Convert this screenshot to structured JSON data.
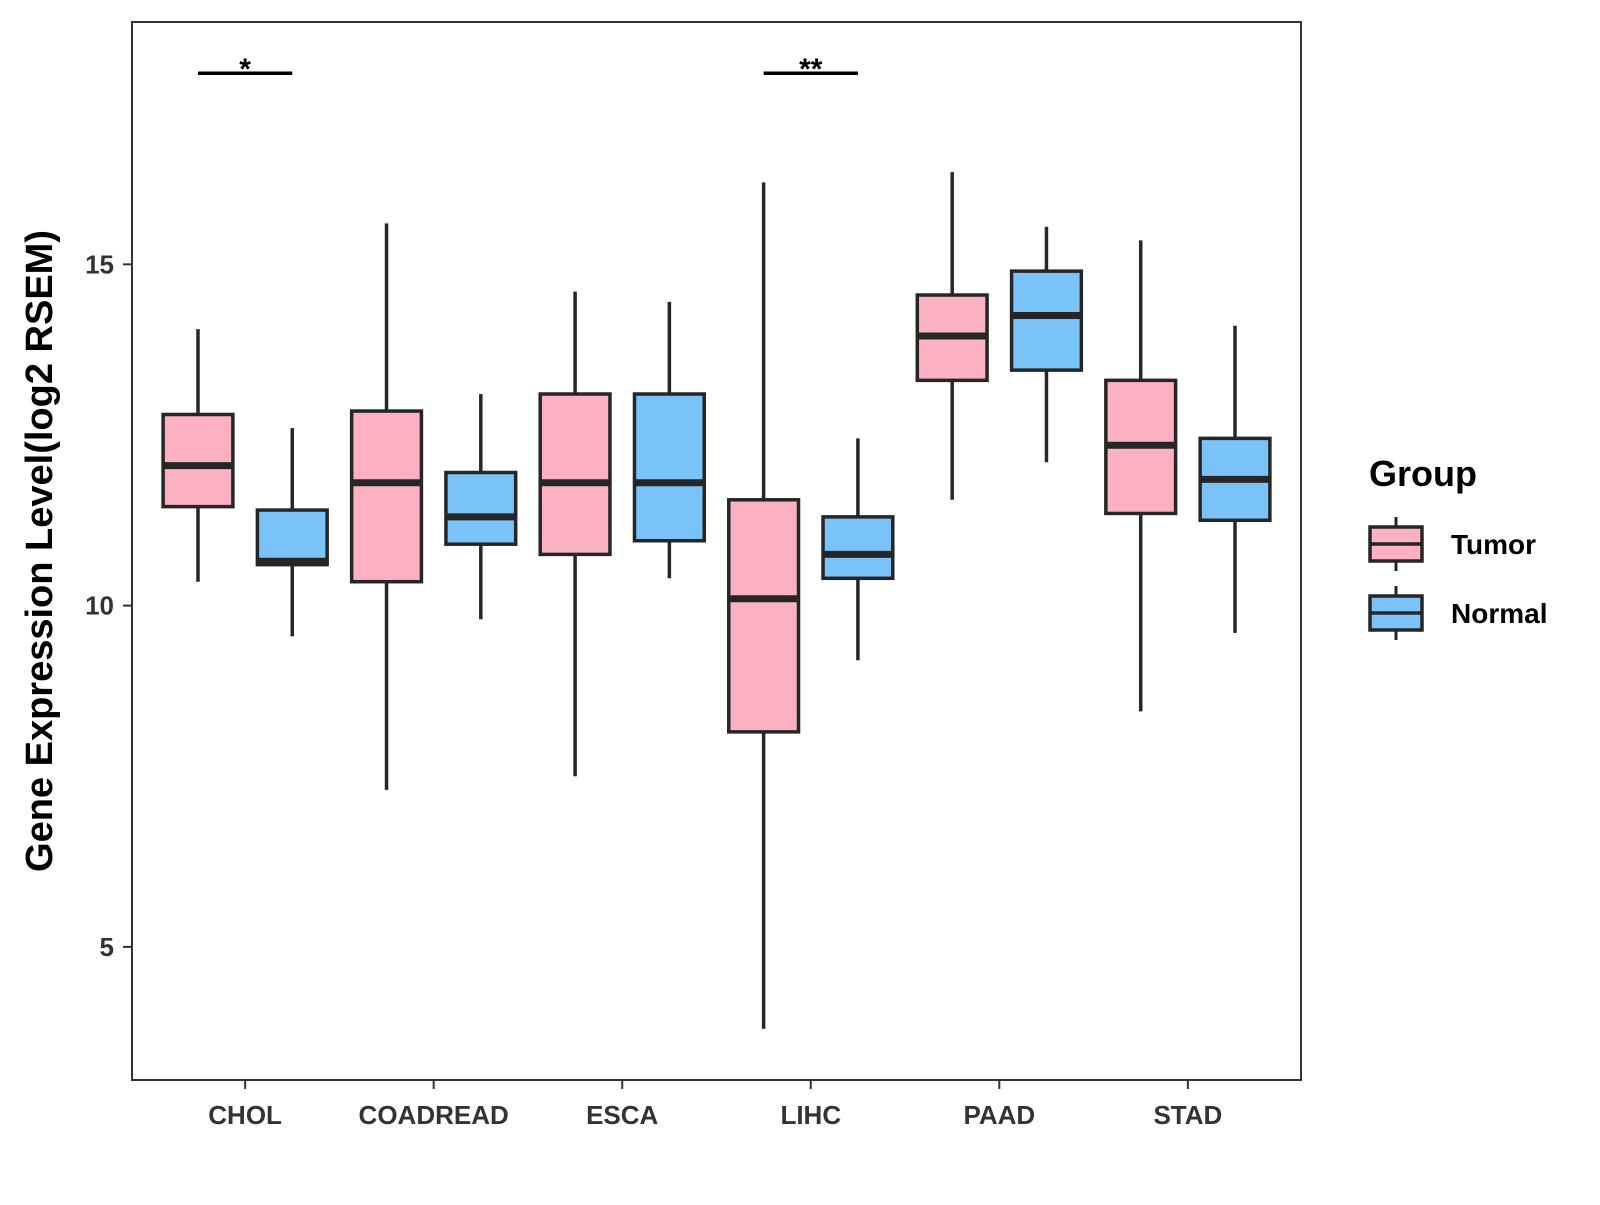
{
  "chart_data": {
    "type": "boxplot",
    "title": "",
    "xlabel": "",
    "ylabel": "Gene Expression Level(log2 RSEM)",
    "ylim": [
      3.05,
      18.55
    ],
    "yticks": [
      5,
      10,
      15
    ],
    "ytick_labels": [
      "5",
      "10",
      "15"
    ],
    "categories": [
      "CHOL",
      "COADREAD",
      "ESCA",
      "LIHC",
      "PAAD",
      "STAD"
    ],
    "legend": {
      "title": "Group",
      "position": "right",
      "entries": [
        {
          "name": "Tumor",
          "color": "#FBB1C1"
        },
        {
          "name": "Normal",
          "color": "#7AC3F8"
        }
      ]
    },
    "series": [
      {
        "name": "Tumor",
        "color": "#FBB1C1",
        "boxes": [
          {
            "min": 10.35,
            "q1": 11.45,
            "median": 12.05,
            "q3": 12.8,
            "max": 14.05
          },
          {
            "min": 7.3,
            "q1": 10.35,
            "median": 11.8,
            "q3": 12.85,
            "max": 15.6
          },
          {
            "min": 7.5,
            "q1": 10.75,
            "median": 11.8,
            "q3": 13.1,
            "max": 14.6
          },
          {
            "min": 3.8,
            "q1": 8.15,
            "median": 10.1,
            "q3": 11.55,
            "max": 16.2
          },
          {
            "min": 11.55,
            "q1": 13.3,
            "median": 13.95,
            "q3": 14.55,
            "max": 16.35
          },
          {
            "min": 8.45,
            "q1": 11.35,
            "median": 12.35,
            "q3": 13.3,
            "max": 15.35
          }
        ]
      },
      {
        "name": "Normal",
        "color": "#7AC3F8",
        "boxes": [
          {
            "min": 9.55,
            "q1": 10.6,
            "median": 10.65,
            "q3": 11.4,
            "max": 12.6
          },
          {
            "min": 9.8,
            "q1": 10.9,
            "median": 11.3,
            "q3": 11.95,
            "max": 13.1
          },
          {
            "min": 10.4,
            "q1": 10.95,
            "median": 11.8,
            "q3": 13.1,
            "max": 14.45
          },
          {
            "min": 9.2,
            "q1": 10.4,
            "median": 10.75,
            "q3": 11.3,
            "max": 12.45
          },
          {
            "min": 12.1,
            "q1": 13.45,
            "median": 14.25,
            "q3": 14.9,
            "max": 15.55
          },
          {
            "min": 9.6,
            "q1": 11.25,
            "median": 11.85,
            "q3": 12.45,
            "max": 14.1
          }
        ]
      }
    ],
    "annotations": [
      {
        "category": "CHOL",
        "label": "*",
        "y": 17.8
      },
      {
        "category": "LIHC",
        "label": "**",
        "y": 17.8
      }
    ]
  }
}
